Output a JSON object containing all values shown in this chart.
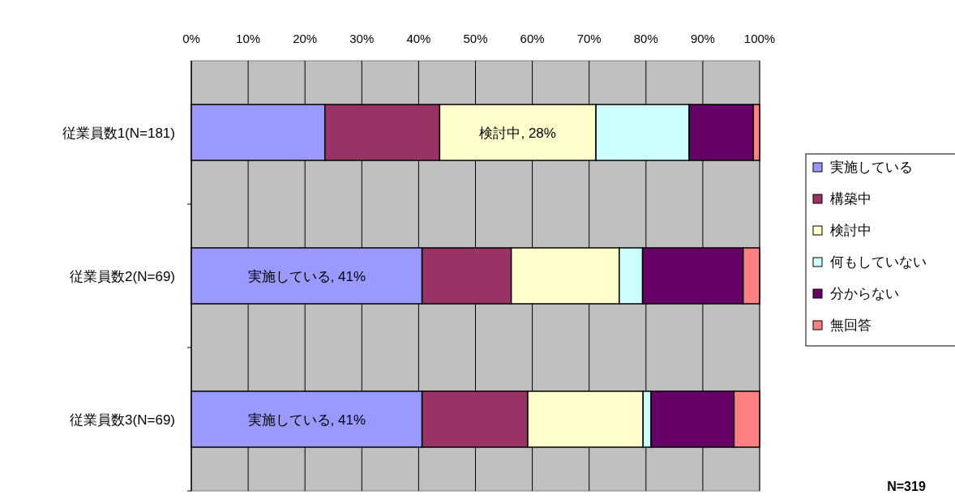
{
  "chart_data": {
    "type": "bar",
    "orientation": "horizontal",
    "stacked": true,
    "categories": [
      "従業員数1(N=181)",
      "従業員数2(N=69)",
      "従業員数3(N=69)"
    ],
    "series": [
      {
        "name": "実施している",
        "color": "#9999ff",
        "values": [
          23.5,
          40.6,
          40.6
        ],
        "value_labels": [
          null,
          "実施している, 41%",
          "実施している, 41%"
        ]
      },
      {
        "name": "構築中",
        "color": "#993366",
        "values": [
          20.2,
          15.7,
          18.6
        ]
      },
      {
        "name": "検討中",
        "color": "#ffffcc",
        "values": [
          27.5,
          19.0,
          20.3
        ],
        "value_labels": [
          "検討中, 28%",
          null,
          null
        ]
      },
      {
        "name": "何もしていない",
        "color": "#ccffff",
        "values": [
          16.4,
          4.1,
          1.4
        ]
      },
      {
        "name": "分からない",
        "color": "#660066",
        "values": [
          11.3,
          17.7,
          14.6
        ]
      },
      {
        "name": "無回答",
        "color": "#ff8080",
        "values": [
          1.1,
          2.9,
          4.5
        ]
      }
    ],
    "xlim": [
      0,
      100
    ],
    "xticks": [
      {
        "value": 0,
        "label": "0%"
      },
      {
        "value": 10,
        "label": "10%"
      },
      {
        "value": 20,
        "label": "20%"
      },
      {
        "value": 30,
        "label": "30%"
      },
      {
        "value": 40,
        "label": "40%"
      },
      {
        "value": 50,
        "label": "50%"
      },
      {
        "value": 60,
        "label": "60%"
      },
      {
        "value": 70,
        "label": "70%"
      },
      {
        "value": 80,
        "label": "80%"
      },
      {
        "value": 90,
        "label": "90%"
      },
      {
        "value": 100,
        "label": "100%"
      }
    ],
    "grid": "x",
    "legend": "right",
    "annotations": [
      "N=319"
    ]
  }
}
